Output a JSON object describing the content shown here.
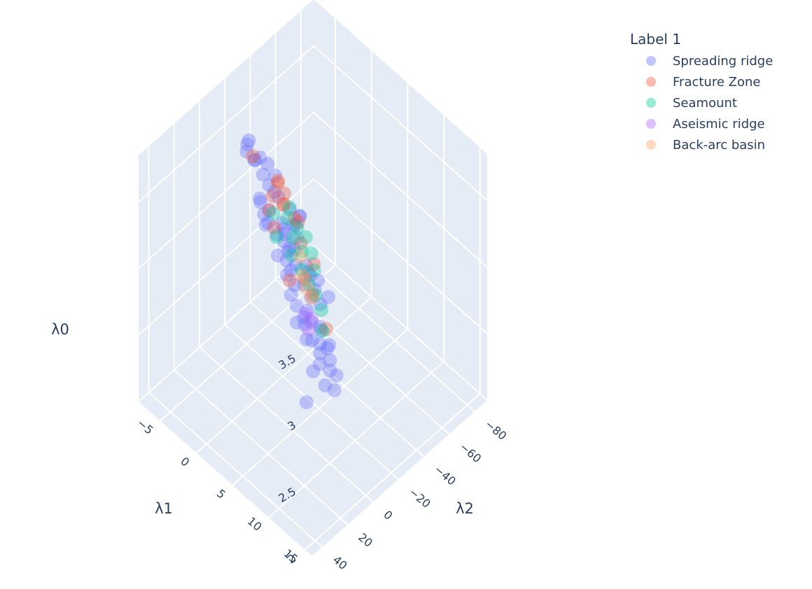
{
  "legend": {
    "title": "Label 1",
    "items": [
      {
        "label": "Spreading ridge",
        "color": "#636efa"
      },
      {
        "label": "Fracture Zone",
        "color": "#ef553b"
      },
      {
        "label": "Seamount",
        "color": "#00cc96"
      },
      {
        "label": "Aseismic ridge",
        "color": "#ab63fa"
      },
      {
        "label": "Back-arc basin",
        "color": "#ffa15a"
      }
    ]
  },
  "chart_data": {
    "type": "scatter3d",
    "scene_background": "#e5ecf6",
    "axes": {
      "z": {
        "title": "λ0",
        "range": [
          2,
          3.85
        ],
        "ticks": [
          "2",
          "2.5",
          "3",
          "3.5"
        ]
      },
      "x": {
        "title": "λ1",
        "range": [
          -8,
          16
        ],
        "ticks": [
          "−5",
          "0",
          "5",
          "10",
          "15"
        ]
      },
      "y": {
        "title": "λ2",
        "range": [
          -90,
          48
        ],
        "ticks": [
          "40",
          "20",
          "0",
          "−20",
          "−40",
          "−60",
          "−80"
        ]
      }
    },
    "marker_opacity": 0.35,
    "series": [
      {
        "name": "Spreading ridge",
        "color": "#636efa",
        "points": [
          [
            -3.3,
            -10.8,
            3.66
          ],
          [
            -3.5,
            -13.2,
            3.66
          ],
          [
            -3.1,
            -9.2,
            3.63
          ],
          [
            -2.1,
            -14.2,
            3.59
          ],
          [
            -1.3,
            -15.5,
            3.57
          ],
          [
            -2.6,
            -12.5,
            3.56
          ],
          [
            -1.1,
            -10.8,
            3.54
          ],
          [
            -3.0,
            -15.3,
            3.52
          ],
          [
            -0.8,
            -18.7,
            3.48
          ],
          [
            0.6,
            -10.0,
            3.5
          ],
          [
            -0.4,
            -4.2,
            3.45
          ],
          [
            0.8,
            -12.1,
            3.45
          ],
          [
            2.5,
            -4.7,
            3.4
          ],
          [
            2.0,
            -14.2,
            3.4
          ],
          [
            -1.1,
            -15.5,
            3.42
          ],
          [
            -0.6,
            -5.8,
            3.4
          ],
          [
            0.5,
            -2.5,
            3.39
          ],
          [
            0.5,
            -6.7,
            3.38
          ],
          [
            2.8,
            -17.5,
            3.36
          ],
          [
            3.1,
            -4.2,
            3.35
          ],
          [
            2.4,
            -7.5,
            3.33
          ],
          [
            0.6,
            -5.0,
            3.31
          ],
          [
            2.2,
            -15.8,
            3.28
          ],
          [
            2.3,
            -17.5,
            3.27
          ],
          [
            1.5,
            -6.7,
            3.25
          ],
          [
            3.4,
            -10.0,
            3.2
          ],
          [
            2.3,
            -8.3,
            3.22
          ],
          [
            3.1,
            -6.7,
            3.2
          ],
          [
            2.4,
            -17.5,
            3.18
          ],
          [
            2.4,
            -11.7,
            3.15
          ],
          [
            3.2,
            -5.0,
            3.15
          ],
          [
            4.4,
            -13.3,
            3.1
          ],
          [
            3.8,
            -1.7,
            3.1
          ],
          [
            3.4,
            -10.8,
            3.08
          ],
          [
            3.2,
            -8.3,
            3.05
          ],
          [
            4.3,
            -5.0,
            3.02
          ],
          [
            4.7,
            -10.0,
            3.0
          ],
          [
            4.4,
            -16.7,
            3.0
          ],
          [
            5.3,
            -15.0,
            2.95
          ],
          [
            5.0,
            -2.5,
            2.92
          ],
          [
            5.1,
            -13.3,
            2.9
          ],
          [
            5.6,
            -7.5,
            2.87
          ],
          [
            5.8,
            -16.7,
            2.85
          ],
          [
            6.0,
            -3.3,
            2.82
          ],
          [
            5.8,
            -9.2,
            2.78
          ],
          [
            6.5,
            -12.5,
            2.75
          ],
          [
            6.7,
            -5.0,
            2.72
          ],
          [
            6.3,
            -14.2,
            2.7
          ],
          [
            6.9,
            -10.0,
            2.66
          ],
          [
            7.2,
            -8.3,
            2.62
          ],
          [
            7.0,
            -16.7,
            2.6
          ],
          [
            7.6,
            -5.8,
            2.58
          ],
          [
            7.7,
            -13.3,
            2.55
          ],
          [
            8.0,
            -11.7,
            2.5
          ],
          [
            8.5,
            -5.0,
            2.47
          ],
          [
            8.3,
            -15.0,
            2.45
          ],
          [
            5.9,
            2.5,
            2.88
          ],
          [
            6.2,
            -1.3,
            2.9
          ],
          [
            8.1,
            7.5,
            2.43
          ],
          [
            8.9,
            -10.0,
            2.41
          ],
          [
            4.0,
            -17.5,
            3.0
          ],
          [
            5.0,
            -19.2,
            2.97
          ],
          [
            6.3,
            -20.0,
            2.9
          ],
          [
            4.8,
            0.8,
            3.02
          ],
          [
            2.7,
            -0.8,
            3.2
          ],
          [
            1.0,
            -0.8,
            3.35
          ],
          [
            5.5,
            -7.5,
            2.65
          ],
          [
            6.6,
            -17.5,
            2.55
          ],
          [
            7.4,
            -1.7,
            2.55
          ],
          [
            2.2,
            -20.8,
            3.3
          ]
        ]
      },
      {
        "name": "Fracture Zone",
        "color": "#ef553b",
        "points": [
          [
            -2.8,
            -12.5,
            3.58
          ],
          [
            0.5,
            -13.3,
            3.53
          ],
          [
            -0.2,
            -17.5,
            3.48
          ],
          [
            0.5,
            -9.2,
            3.47
          ],
          [
            0.8,
            -16.7,
            3.44
          ],
          [
            1.5,
            -11.7,
            3.43
          ],
          [
            1.2,
            -14.2,
            3.4
          ],
          [
            0.3,
            -7.5,
            3.37
          ],
          [
            2.5,
            -15.0,
            3.35
          ],
          [
            1.3,
            -5.8,
            3.3
          ],
          [
            4.3,
            -20.0,
            3.05
          ],
          [
            2.8,
            -18.3,
            3.15
          ],
          [
            3.9,
            -3.3,
            3.05
          ],
          [
            5.3,
            -13.3,
            2.93
          ],
          [
            4.5,
            -11.7,
            3.02
          ],
          [
            6.9,
            -15.0,
            2.73
          ],
          [
            2.0,
            -20.8,
            3.25
          ]
        ]
      },
      {
        "name": "Seamount",
        "color": "#00cc96",
        "points": [
          [
            1.2,
            -5.8,
            3.4
          ],
          [
            1.5,
            -16.7,
            3.37
          ],
          [
            1.8,
            -13.3,
            3.33
          ],
          [
            2.2,
            -2.5,
            3.3
          ],
          [
            2.6,
            -16.7,
            3.27
          ],
          [
            2.9,
            -11.7,
            3.25
          ],
          [
            3.2,
            -20.0,
            3.2
          ],
          [
            3.4,
            -7.5,
            3.18
          ],
          [
            3.5,
            -15.0,
            3.15
          ],
          [
            3.8,
            -20.8,
            3.1
          ],
          [
            4.2,
            -10.8,
            3.08
          ],
          [
            4.5,
            -19.2,
            3.02
          ],
          [
            4.8,
            -13.3,
            2.98
          ],
          [
            5.3,
            -15.8,
            2.9
          ],
          [
            5.8,
            -17.5,
            2.8
          ],
          [
            6.7,
            -13.3,
            2.72
          ]
        ]
      },
      {
        "name": "Aseismic ridge",
        "color": "#ab63fa",
        "points": [
          [
            5.2,
            -8.3,
            2.82
          ],
          [
            5.6,
            -10.8,
            2.78
          ],
          [
            5.9,
            -6.7,
            2.75
          ]
        ]
      },
      {
        "name": "Back-arc basin",
        "color": "#ffa15a",
        "points": [
          [
            3.3,
            -15.0,
            3.1
          ],
          [
            3.9,
            -13.3,
            3.0
          ],
          [
            4.6,
            -12.5,
            2.95
          ],
          [
            5.0,
            -14.2,
            2.88
          ]
        ]
      }
    ]
  }
}
